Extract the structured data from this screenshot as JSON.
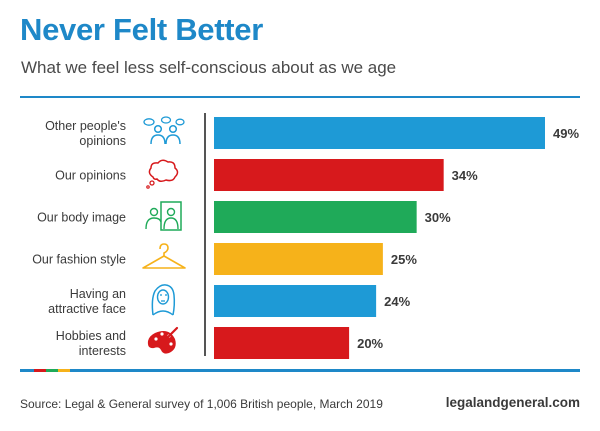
{
  "chart_data": {
    "type": "bar",
    "orientation": "horizontal",
    "title": "Never Felt Better",
    "subtitle": "What we feel less self-conscious about as we age",
    "categories": [
      [
        "Other people's",
        "opinions"
      ],
      [
        "Our opinions"
      ],
      [
        "Our body image"
      ],
      [
        "Our fashion style"
      ],
      [
        "Having an",
        "attractive face"
      ],
      [
        "Hobbies and",
        "interests"
      ]
    ],
    "values": [
      49,
      34,
      30,
      25,
      24,
      20
    ],
    "value_labels": [
      "49%",
      "34%",
      "30%",
      "25%",
      "24%",
      "20%"
    ],
    "unit": "%",
    "colors": [
      "#1E9AD6",
      "#D7191C",
      "#1FAA59",
      "#F6B21A",
      "#1E9AD6",
      "#D7191C"
    ],
    "icons": [
      "people-talking-icon",
      "thought-bubble-icon",
      "mirror-icon",
      "coat-hanger-icon",
      "face-portrait-icon",
      "paint-palette-icon"
    ],
    "xlim": [
      0,
      49
    ],
    "xlabel": "",
    "ylabel": ""
  },
  "footer": {
    "source": "Source: Legal & General survey of 1,006 British people, March 2019",
    "site": "legalandgeneral.com",
    "rule_colors": [
      "#1E88C8",
      "#D7191C",
      "#1FAA59",
      "#F6B21A",
      "#1E88C8"
    ]
  },
  "colors": {
    "title": "#1E88C8",
    "axis": "#555555",
    "label": "#3a3a3a"
  }
}
